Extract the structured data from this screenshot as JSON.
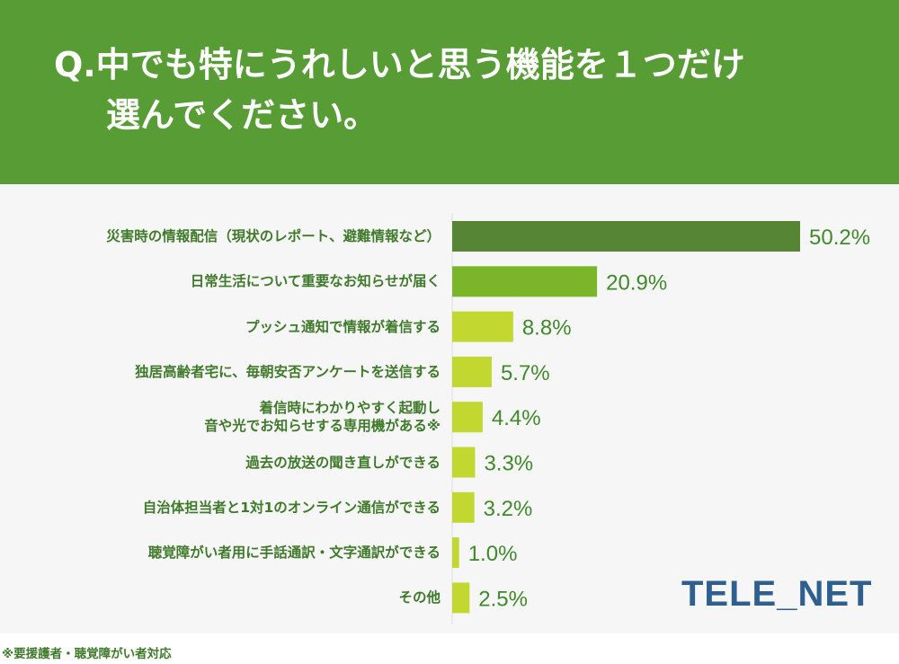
{
  "question": {
    "line1": "Q.中でも特にうれしいと思う機能を１つだけ",
    "line2": "選んでください。"
  },
  "chart_data": {
    "type": "bar",
    "orientation": "horizontal",
    "categories": [
      [
        "災害時の情報配信（現状のレポート、避難情報など）"
      ],
      [
        "日常生活について重要なお知らせが届く"
      ],
      [
        "プッシュ通知で情報が着信する"
      ],
      [
        "独居高齢者宅に、毎朝安否アンケートを送信する"
      ],
      [
        "着信時にわかりやすく起動し",
        "音や光でお知らせする専用機がある※"
      ],
      [
        "過去の放送の聞き直しができる"
      ],
      [
        "自治体担当者と1対1のオンライン通信ができる"
      ],
      [
        "聴覚障がい者用に手話通訳・文字通訳ができる"
      ],
      [
        "その他"
      ]
    ],
    "values": [
      50.2,
      20.9,
      8.8,
      5.7,
      4.4,
      3.3,
      3.2,
      1.0,
      2.5
    ],
    "value_labels": [
      "50.2%",
      "20.9%",
      "8.8%",
      "5.7%",
      "4.4%",
      "3.3%",
      "3.2%",
      "1.0%",
      "2.5%"
    ],
    "bar_colors": [
      "#558535",
      "#7bb62a",
      "#c2d72f",
      "#c2d72f",
      "#c2d72f",
      "#c2d72f",
      "#c2d72f",
      "#c2d72f",
      "#c2d72f"
    ],
    "value_color": "#3f8a2a",
    "xlim": [
      0,
      50.2
    ]
  },
  "logo": {
    "text": "TELE_NET",
    "color": "#2e5f8e"
  },
  "footnote": "※要援護者・聴覚障がい者対応"
}
